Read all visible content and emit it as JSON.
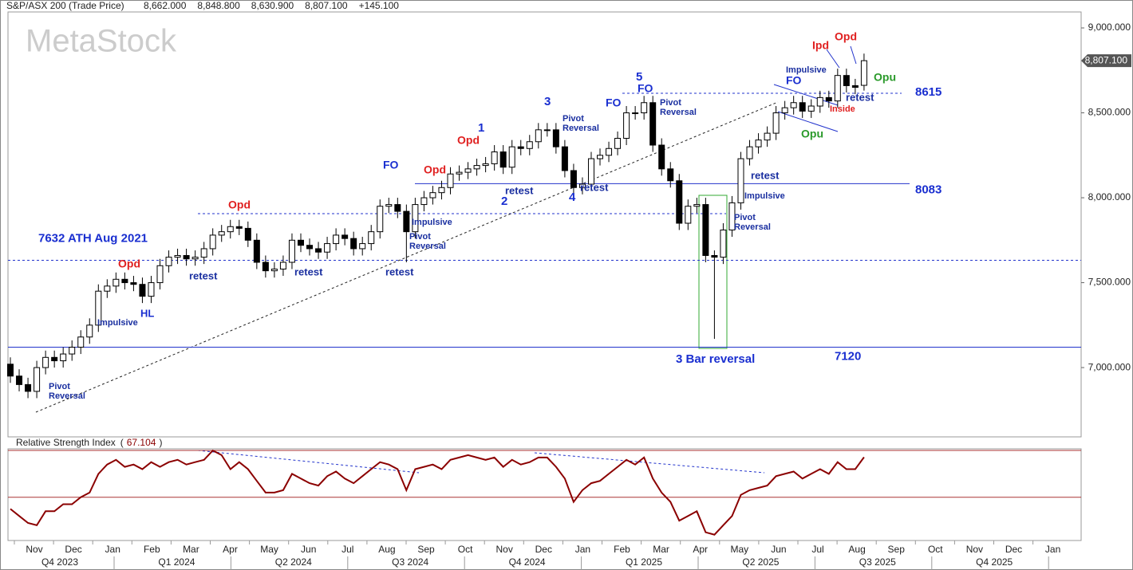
{
  "chart_data": [
    {
      "type": "candlestick",
      "title": "S&P/ASX 200 (Trade Price)",
      "header_values": [
        "8,662.000",
        "8,848.800",
        "8,630.900",
        "8,807.100",
        "+145.100"
      ],
      "last_price_label": "8,807.100",
      "watermark": "MetaStock",
      "ylim": [
        6592,
        9094
      ],
      "yticks": [
        {
          "value": 7000,
          "label": "7,000.000"
        },
        {
          "value": 7500,
          "label": "7,500.000"
        },
        {
          "value": 8000,
          "label": "8,000.000"
        },
        {
          "value": 8500,
          "label": "8,500.000"
        },
        {
          "value": 9000,
          "label": "9,000.000"
        }
      ],
      "months": [
        "Nov",
        "Dec",
        "Jan",
        "Feb",
        "Mar",
        "Apr",
        "May",
        "Jun",
        "Jul",
        "Aug",
        "Sep",
        "Oct",
        "Nov",
        "Dec",
        "Jan",
        "Feb",
        "Mar",
        "Apr",
        "May",
        "Jun",
        "Jul",
        "Aug",
        "Sep",
        "Oct",
        "Nov",
        "Dec",
        "Jan"
      ],
      "quarters": [
        "Q4 2023",
        "Q1 2024",
        "Q2 2024",
        "Q3 2024",
        "Q4 2024",
        "Q1 2025",
        "Q2 2025",
        "Q3 2025",
        "Q4 2025"
      ],
      "open": [
        7020,
        6950,
        6900,
        6860,
        7000,
        7060,
        7040,
        7080,
        7120,
        7180,
        7250,
        7450,
        7480,
        7520,
        7500,
        7490,
        7420,
        7500,
        7600,
        7650,
        7660,
        7640,
        7650,
        7700,
        7780,
        7800,
        7830,
        7820,
        7750,
        7620,
        7570,
        7580,
        7620,
        7750,
        7720,
        7700,
        7680,
        7730,
        7780,
        7760,
        7700,
        7730,
        7800,
        7950,
        7960,
        7920,
        7800,
        7960,
        8000,
        8030,
        8060,
        8140,
        8150,
        8170,
        8190,
        8200,
        8270,
        8180,
        8300,
        8290,
        8330,
        8400,
        8400,
        8300,
        8160,
        8060,
        8080,
        8230,
        8250,
        8290,
        8350,
        8500,
        8500,
        8560,
        8310,
        8170,
        8100,
        7850,
        7950,
        7960,
        7660,
        7650,
        7810,
        7970,
        8230,
        8300,
        8340,
        8380,
        8500,
        8530,
        8560,
        8510,
        8540,
        8590,
        8570,
        8720,
        8660,
        8662
      ],
      "high": [
        7060,
        6990,
        6940,
        7040,
        7100,
        7100,
        7120,
        7160,
        7220,
        7290,
        7490,
        7520,
        7560,
        7560,
        7540,
        7530,
        7540,
        7640,
        7690,
        7700,
        7700,
        7690,
        7740,
        7820,
        7840,
        7870,
        7870,
        7860,
        7790,
        7660,
        7620,
        7660,
        7790,
        7790,
        7760,
        7740,
        7770,
        7820,
        7820,
        7800,
        7770,
        7840,
        7990,
        8000,
        8000,
        7960,
        8000,
        8040,
        8070,
        8100,
        8180,
        8190,
        8210,
        8230,
        8240,
        8310,
        8310,
        8340,
        8340,
        8370,
        8440,
        8440,
        8440,
        8340,
        8200,
        8120,
        8270,
        8290,
        8330,
        8390,
        8540,
        8540,
        8600,
        8600,
        8350,
        8210,
        8140,
        7990,
        8000,
        8000,
        7690,
        7850,
        8010,
        8270,
        8340,
        8380,
        8420,
        8540,
        8570,
        8600,
        8600,
        8580,
        8630,
        8630,
        8760,
        8760,
        8700,
        8848.8
      ],
      "low": [
        6910,
        6860,
        6820,
        6820,
        6960,
        7000,
        7000,
        7040,
        7080,
        7140,
        7210,
        7410,
        7440,
        7460,
        7450,
        7380,
        7380,
        7460,
        7560,
        7610,
        7600,
        7600,
        7610,
        7660,
        7740,
        7760,
        7780,
        7710,
        7580,
        7530,
        7530,
        7540,
        7580,
        7680,
        7660,
        7640,
        7640,
        7690,
        7720,
        7660,
        7660,
        7690,
        7760,
        7910,
        7880,
        7620,
        7760,
        7920,
        7960,
        7990,
        8020,
        8100,
        8110,
        8130,
        8150,
        8160,
        8140,
        8140,
        8250,
        8250,
        8290,
        8360,
        8260,
        8120,
        8020,
        8020,
        8040,
        8190,
        8210,
        8250,
        8310,
        8460,
        8460,
        8270,
        8130,
        8060,
        7810,
        7810,
        7910,
        7620,
        7169,
        7610,
        7770,
        7930,
        8190,
        8260,
        8300,
        8340,
        8460,
        8490,
        8470,
        8470,
        8500,
        8530,
        8530,
        8620,
        8610,
        8630.9
      ],
      "close": [
        6950,
        6900,
        6860,
        7000,
        7060,
        7040,
        7080,
        7120,
        7180,
        7250,
        7450,
        7480,
        7520,
        7500,
        7490,
        7420,
        7500,
        7600,
        7650,
        7660,
        7640,
        7650,
        7700,
        7780,
        7800,
        7830,
        7820,
        7750,
        7620,
        7570,
        7580,
        7620,
        7750,
        7720,
        7700,
        7680,
        7730,
        7780,
        7760,
        7700,
        7730,
        7800,
        7950,
        7960,
        7920,
        7800,
        7960,
        8000,
        8030,
        8060,
        8140,
        8150,
        8170,
        8190,
        8200,
        8270,
        8180,
        8300,
        8290,
        8330,
        8400,
        8400,
        8300,
        8160,
        8060,
        8080,
        8230,
        8250,
        8290,
        8350,
        8500,
        8500,
        8560,
        8310,
        8170,
        8100,
        7850,
        7950,
        7960,
        7660,
        7650,
        7810,
        7970,
        8230,
        8300,
        8340,
        8380,
        8500,
        8530,
        8560,
        8510,
        8540,
        8590,
        8570,
        8720,
        8660,
        8650,
        8807.1
      ],
      "levels": [
        {
          "value": 8615,
          "label": "8615"
        },
        {
          "value": 8083,
          "label": "8083"
        },
        {
          "value": 7120,
          "label": "7120"
        },
        {
          "value": 7632,
          "label": "7632 ATH Aug 2021"
        }
      ],
      "annotations": [
        "Opd",
        "Opd",
        "Opd",
        "Opd",
        "Opd",
        "Ipd",
        "1",
        "2",
        "3",
        "4",
        "5",
        "FO",
        "FO",
        "FO",
        "FO",
        "Pivot Reversal",
        "Pivot Reversal",
        "Pivot Reversal",
        "Pivot Reversal",
        "Pivot Reversal",
        "Impulsive",
        "Impulsive",
        "Impulsive",
        "Impulsive",
        "HL",
        "retest",
        "retest",
        "retest",
        "retest",
        "retest",
        "retest",
        "retest",
        "Inside",
        "Opu",
        "Opu",
        "3 Bar reversal"
      ]
    },
    {
      "type": "line",
      "title": "Relative Strength Index",
      "value_label": "67.104",
      "color": "#8b0000",
      "ylim": [
        31.5,
        70.7
      ],
      "bands": [
        70,
        50
      ],
      "values": [
        45,
        42,
        39,
        38,
        44,
        44,
        47,
        47,
        50,
        52,
        60,
        64,
        66,
        63,
        64,
        62,
        65,
        63,
        65,
        66,
        64,
        65,
        66,
        70,
        68,
        62,
        65,
        62,
        57,
        52,
        52,
        53,
        60,
        58,
        56,
        55,
        59,
        61,
        58,
        56,
        59,
        62,
        65,
        64,
        62,
        53,
        62,
        63,
        64,
        62,
        66,
        67,
        68,
        67,
        66,
        67,
        63,
        66,
        64,
        65,
        67,
        67,
        63,
        58,
        48,
        53,
        56,
        57,
        60,
        63,
        66,
        64,
        67,
        58,
        52,
        48,
        40,
        42,
        44,
        35,
        34,
        38,
        42,
        51,
        53,
        54,
        55,
        59,
        60,
        61,
        58,
        60,
        62,
        60,
        65,
        62,
        62,
        67.104
      ]
    }
  ]
}
